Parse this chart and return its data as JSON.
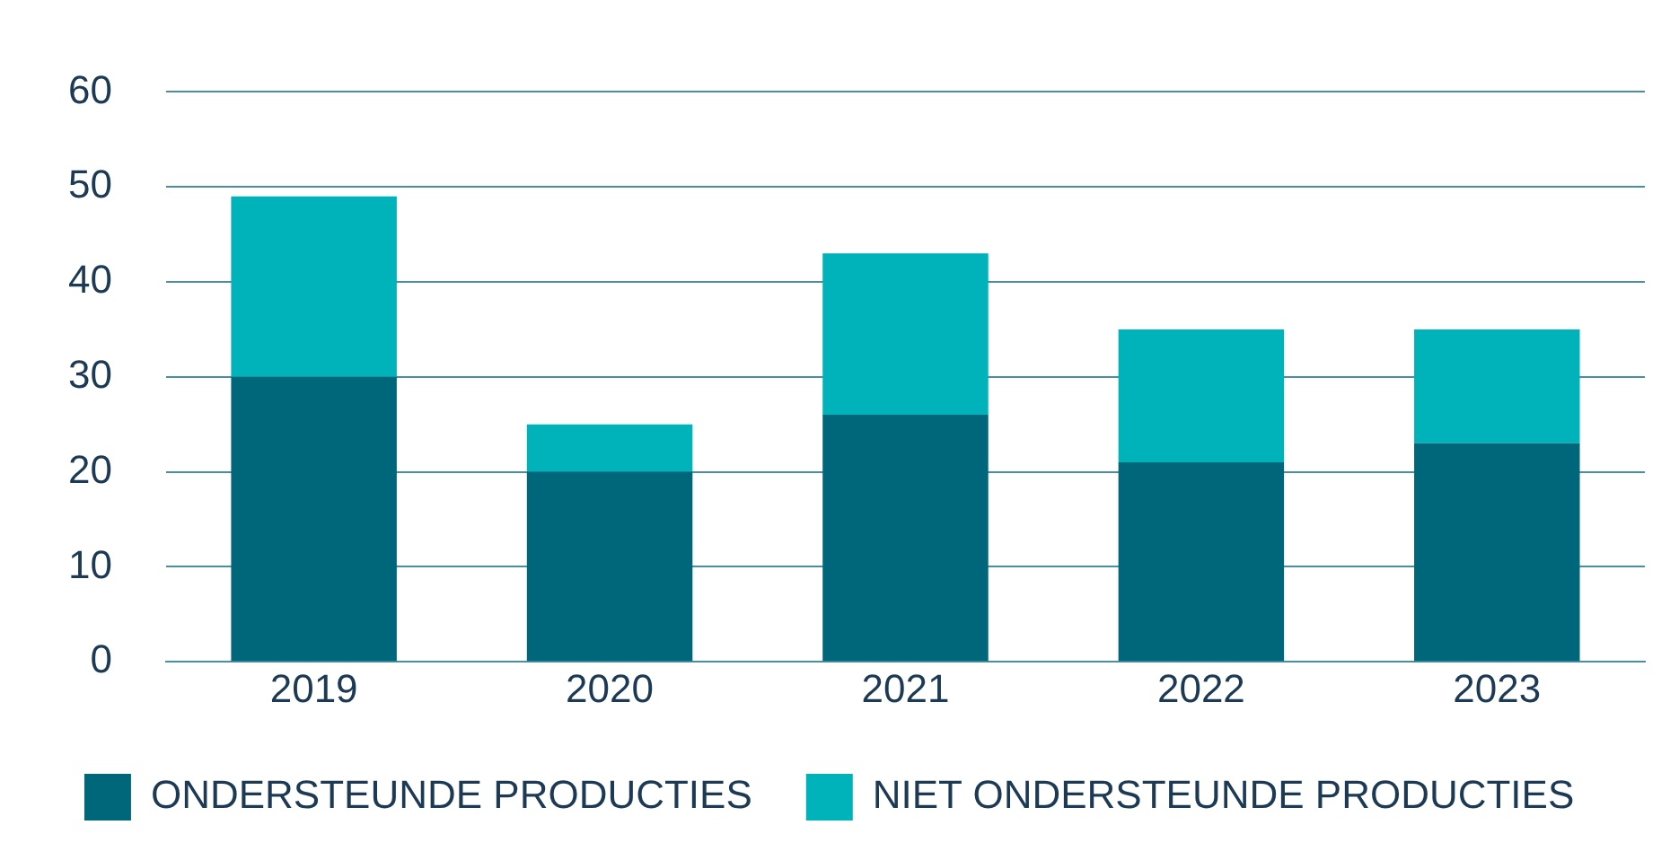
{
  "chart_data": {
    "type": "bar",
    "stacked": true,
    "categories": [
      "2019",
      "2020",
      "2021",
      "2022",
      "2023"
    ],
    "series": [
      {
        "name": "ONDERSTEUNDE PRODUCTIES",
        "color": "#00677a",
        "values": [
          30,
          20,
          26,
          21,
          23
        ]
      },
      {
        "name": "NIET ONDERSTEUNDE PRODUCTIES",
        "color": "#00b2b9",
        "values": [
          19,
          5,
          17,
          14,
          12
        ]
      }
    ],
    "ylim": [
      0,
      60
    ],
    "yticks": [
      0,
      10,
      20,
      30,
      40,
      50,
      60
    ],
    "grid": "y",
    "legend": "bottom"
  }
}
